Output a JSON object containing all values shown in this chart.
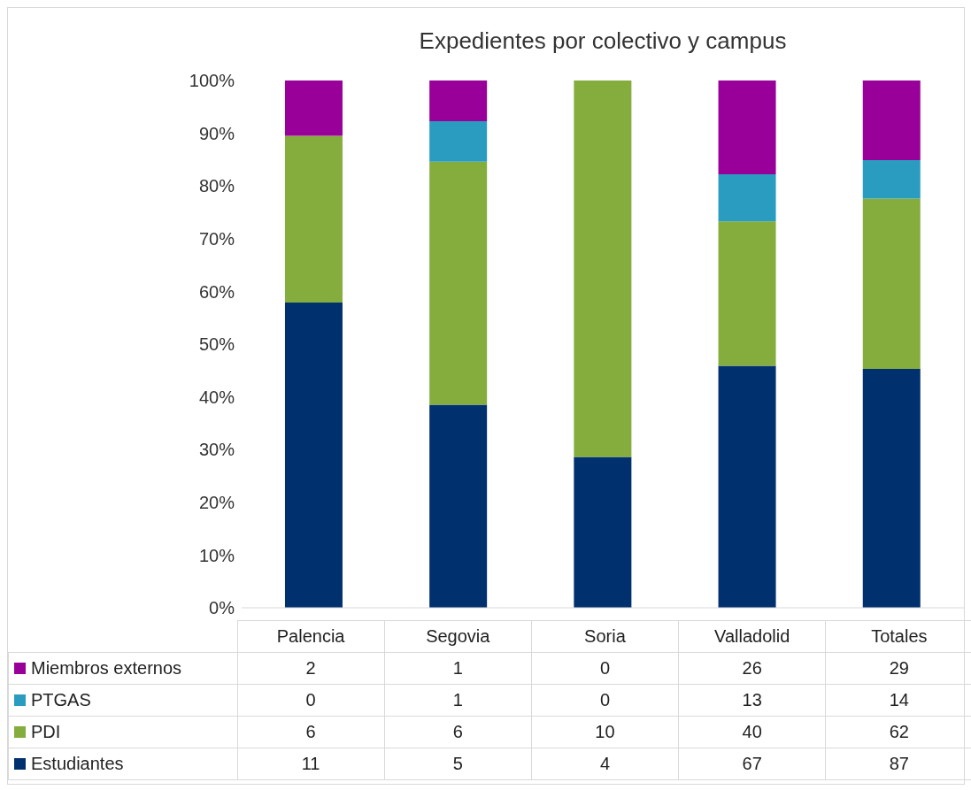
{
  "chart_data": [
    {
      "type": "bar",
      "title": "Expedientes por colectivo y campus",
      "stacked": true,
      "categories": [
        null,
        null,
        null,
        null,
        null
      ],
      "series": [
        {
          "color": "#00306e",
          "values": [
            57.9,
            38.5,
            28.6,
            45.9,
            45.3
          ]
        },
        {
          "color": "#84ad3e",
          "values": [
            31.6,
            46.1,
            71.4,
            27.4,
            32.3
          ]
        },
        {
          "color": "#2a9cc0",
          "values": [
            0,
            7.7,
            0,
            8.9,
            7.3
          ]
        },
        {
          "color": "#990099",
          "values": [
            10.5,
            7.7,
            0,
            17.8,
            15.1
          ]
        }
      ],
      "ylim": [
        0,
        100
      ],
      "yticks": [
        {
          "value": 0,
          "label": "0%"
        },
        {
          "value": 10,
          "label": "10%"
        },
        {
          "value": 20,
          "label": "20%"
        },
        {
          "value": 30,
          "label": "30%"
        },
        {
          "value": 40,
          "label": "40%"
        },
        {
          "value": 50,
          "label": "50%"
        },
        {
          "value": 60,
          "label": "60%"
        },
        {
          "value": 70,
          "label": "70%"
        },
        {
          "value": 80,
          "label": "80%"
        },
        {
          "value": 90,
          "label": "90%"
        },
        {
          "value": 100,
          "label": "100%"
        }
      ],
      "grid": false,
      "tick_labels": "y"
    },
    {
      "type": "other",
      "data_labels": true,
      "categories": [
        "Palencia",
        "Segovia",
        "Soria",
        "Valladolid",
        "Totales"
      ],
      "series": [
        {
          "name": "Miembros externos",
          "color": "#990099",
          "values": [
            2,
            1,
            0,
            26,
            29
          ]
        },
        {
          "name": "PTGAS",
          "color": "#2a9cc0",
          "values": [
            0,
            1,
            0,
            13,
            14
          ]
        },
        {
          "name": "PDI",
          "color": "#84ad3e",
          "values": [
            6,
            6,
            10,
            40,
            62
          ]
        },
        {
          "name": "Estudiantes",
          "color": "#00306e",
          "values": [
            11,
            5,
            4,
            67,
            87
          ]
        }
      ]
    }
  ]
}
